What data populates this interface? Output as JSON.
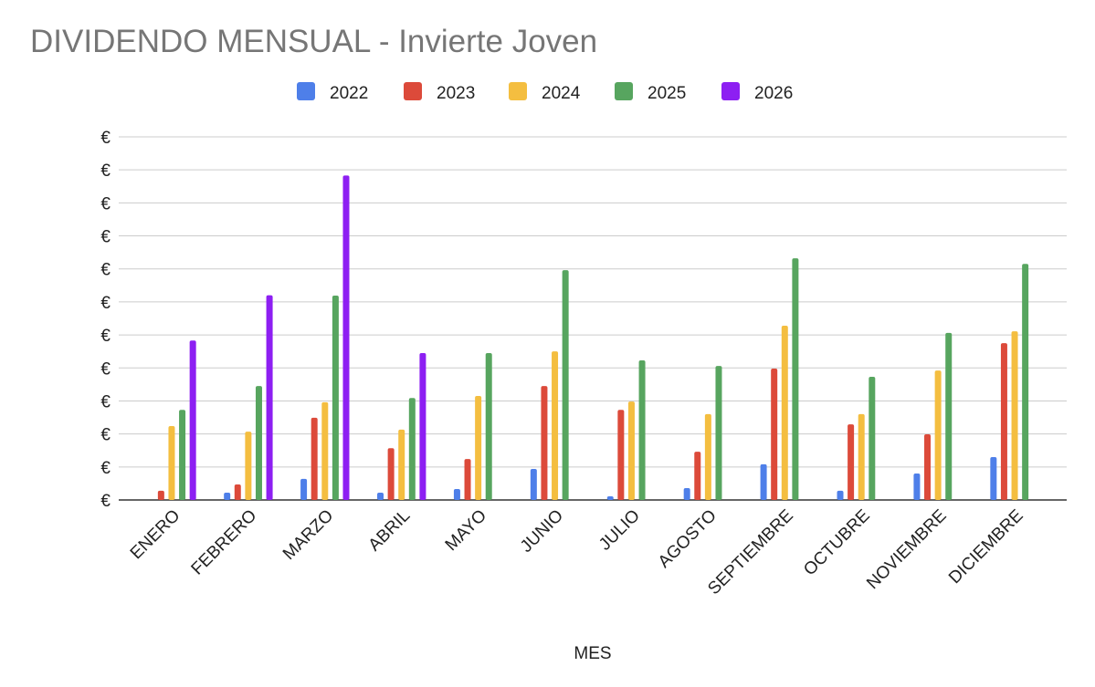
{
  "chart_data": {
    "type": "bar",
    "title": "DIVIDENDO MENSUAL - Invierte Joven",
    "x_label": "MES",
    "categories": [
      "ENERO",
      "FEBRERO",
      "MARZO",
      "ABRIL",
      "MAYO",
      "JUNIO",
      "JULIO",
      "AGOSTO",
      "SEPTIEMBRE",
      "OCTUBRE",
      "NOVIEMBRE",
      "DICIEMBRE"
    ],
    "series": [
      {
        "name": "2022",
        "color": "#4e7fe9",
        "values": [
          null,
          0.22,
          0.64,
          0.22,
          0.33,
          0.94,
          0.11,
          0.36,
          1.08,
          0.28,
          0.8,
          1.3
        ]
      },
      {
        "name": "2023",
        "color": "#dc4a3a",
        "values": [
          0.28,
          0.47,
          2.49,
          1.57,
          1.24,
          3.45,
          2.73,
          1.46,
          3.98,
          2.29,
          1.99,
          4.75
        ]
      },
      {
        "name": "2024",
        "color": "#f4be40",
        "values": [
          2.24,
          2.07,
          2.96,
          2.13,
          3.15,
          4.5,
          2.98,
          2.6,
          5.28,
          2.6,
          3.92,
          5.11
        ]
      },
      {
        "name": "2025",
        "color": "#57a55f",
        "values": [
          2.73,
          3.45,
          6.19,
          3.09,
          4.45,
          6.96,
          4.23,
          4.06,
          7.32,
          3.73,
          5.06,
          7.15
        ]
      },
      {
        "name": "2026",
        "color": "#8d1ff2",
        "values": [
          4.83,
          6.2,
          9.83,
          4.45,
          null,
          null,
          null,
          null,
          null,
          null,
          null,
          null
        ]
      }
    ],
    "ylim": [
      0,
      11
    ],
    "yticks": [
      {
        "value": 0,
        "label": "€"
      },
      {
        "value": 1,
        "label": "€"
      },
      {
        "value": 2,
        "label": "€"
      },
      {
        "value": 3,
        "label": "€"
      },
      {
        "value": 4,
        "label": "€"
      },
      {
        "value": 5,
        "label": "€"
      },
      {
        "value": 6,
        "label": "€"
      },
      {
        "value": 7,
        "label": "€"
      },
      {
        "value": 8,
        "label": "€"
      },
      {
        "value": 9,
        "label": "€"
      },
      {
        "value": 10,
        "label": "€"
      },
      {
        "value": 11,
        "label": "€"
      }
    ],
    "grid": true
  }
}
